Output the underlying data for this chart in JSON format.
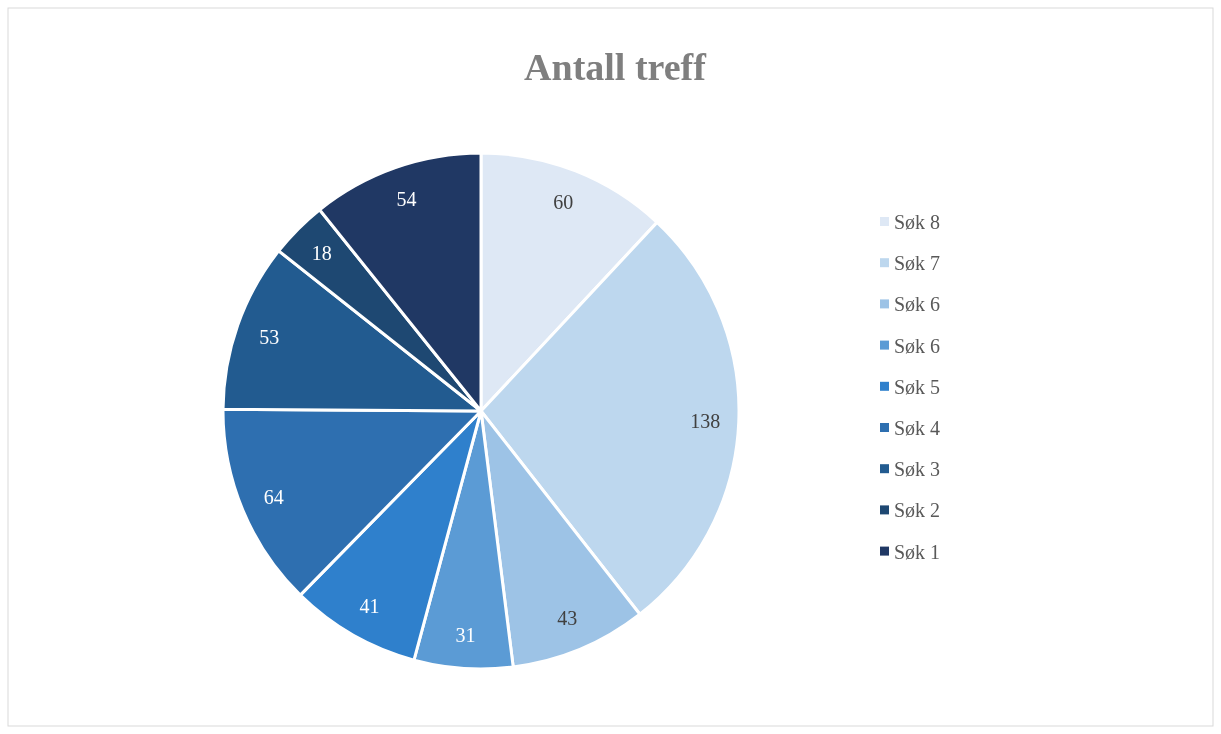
{
  "chart_data": {
    "type": "pie",
    "title": "Antall treff",
    "categories": [
      "Søk 8",
      "Søk 7",
      "Søk 6",
      "Søk 6",
      "Søk 5",
      "Søk 4",
      "Søk 3",
      "Søk 2",
      "Søk 1"
    ],
    "values": [
      60,
      138,
      43,
      31,
      41,
      64,
      53,
      18,
      54
    ],
    "colors": [
      "#dee8f5",
      "#bdd7ee",
      "#9dc3e6",
      "#5b9bd5",
      "#2f80cc",
      "#2e6fb0",
      "#225b90",
      "#1e4872",
      "#203864"
    ],
    "data_labels": true,
    "legend": "right"
  }
}
